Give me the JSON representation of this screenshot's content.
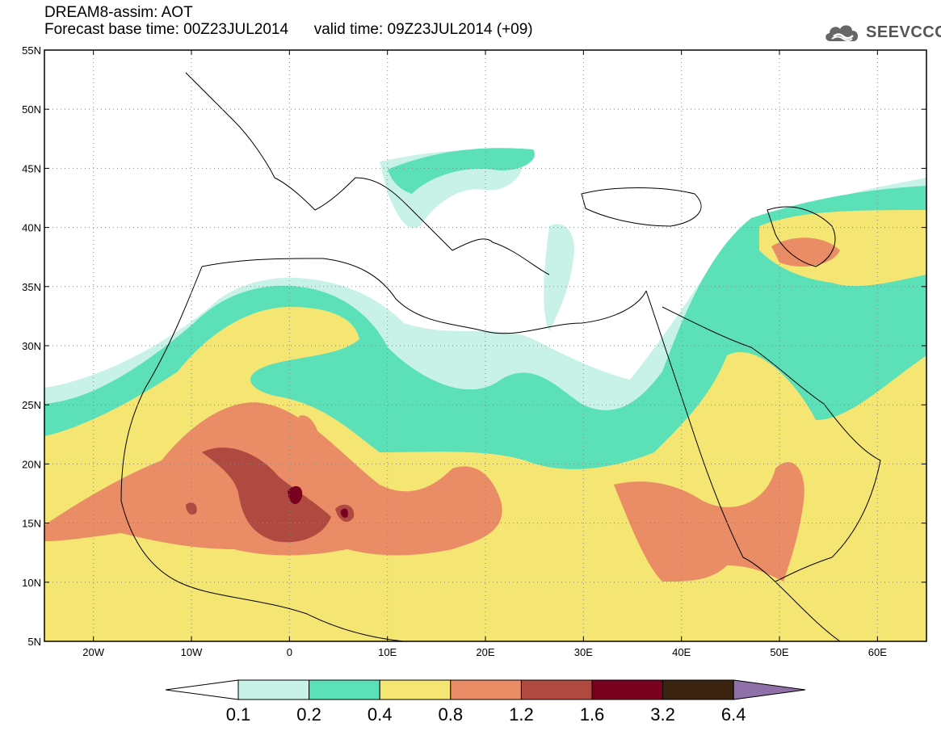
{
  "header": {
    "title_line1": "DREAM8-assim: AOT",
    "title_line2": "Forecast base time: 00Z23JUL2014      valid time: 09Z23JUL2014 (+09)",
    "logo_text": "SEEVCCC",
    "logo_icon": "cloud-icon"
  },
  "map": {
    "lon_range": [
      -25,
      65
    ],
    "lat_range": [
      5,
      55
    ],
    "lat_ticks": [
      {
        "value": 55,
        "label": "55N"
      },
      {
        "value": 50,
        "label": "50N"
      },
      {
        "value": 45,
        "label": "45N"
      },
      {
        "value": 40,
        "label": "40N"
      },
      {
        "value": 35,
        "label": "35N"
      },
      {
        "value": 30,
        "label": "30N"
      },
      {
        "value": 25,
        "label": "25N"
      },
      {
        "value": 20,
        "label": "20N"
      },
      {
        "value": 15,
        "label": "15N"
      },
      {
        "value": 10,
        "label": "10N"
      },
      {
        "value": 5,
        "label": "5N"
      }
    ],
    "lon_ticks": [
      {
        "value": -20,
        "label": "20W"
      },
      {
        "value": -10,
        "label": "10W"
      },
      {
        "value": 0,
        "label": "0"
      },
      {
        "value": 10,
        "label": "10E"
      },
      {
        "value": 20,
        "label": "20E"
      },
      {
        "value": 30,
        "label": "30E"
      },
      {
        "value": 40,
        "label": "40E"
      },
      {
        "value": 50,
        "label": "50E"
      },
      {
        "value": 60,
        "label": "60E"
      }
    ],
    "grid": "dotted"
  },
  "colorbar": {
    "bins": [
      {
        "color": "#c8f2e8"
      },
      {
        "color": "#5ce0b8"
      },
      {
        "color": "#f5e673"
      },
      {
        "color": "#ea8c65"
      },
      {
        "color": "#b04a40"
      },
      {
        "color": "#7a0020"
      },
      {
        "color": "#3a2410"
      }
    ],
    "under_color": "#ffffff",
    "over_color": "#9070a8",
    "labels": [
      "0.1",
      "0.2",
      "0.4",
      "0.8",
      "1.2",
      "1.6",
      "3.2",
      "6.4"
    ]
  },
  "colors": {
    "c01": "#c8f2e8",
    "c02": "#5ce0b8",
    "c04": "#f5e673",
    "c08": "#ea8c65",
    "c12": "#b04a40",
    "c16": "#7a0020"
  }
}
